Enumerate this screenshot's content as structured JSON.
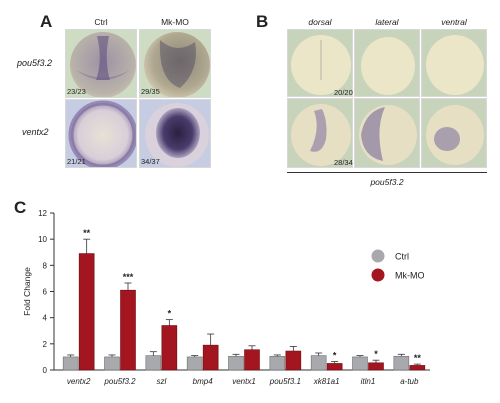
{
  "figure": {
    "panel_a": {
      "letter": "A",
      "columns": [
        "Ctrl",
        "Mk-MO"
      ],
      "rows": [
        {
          "label": "pou5f3.2",
          "counts": [
            "23/23",
            "29/35"
          ]
        },
        {
          "label": "ventx2",
          "counts": [
            "21/21",
            "34/37"
          ]
        }
      ]
    },
    "panel_b": {
      "letter": "B",
      "columns": [
        "dorsal",
        "lateral",
        "ventral"
      ],
      "counts": [
        "20/20",
        "28/34"
      ],
      "gene": "pou5f3.2"
    },
    "panel_c": {
      "letter": "C"
    }
  },
  "chart_data": {
    "type": "bar",
    "ylabel": "Fold Change",
    "ylim": [
      0,
      12
    ],
    "yticks": [
      0,
      2,
      4,
      6,
      8,
      10,
      12
    ],
    "categories": [
      "ventx2",
      "pou5f3.2",
      "szl",
      "bmp4",
      "ventx1",
      "pou5f3.1",
      "xk81a1",
      "itln1",
      "a-tub"
    ],
    "series": [
      {
        "name": "Ctrl",
        "color": "#a7a9ac",
        "values": [
          1.0,
          1.0,
          1.1,
          1.0,
          1.05,
          1.05,
          1.1,
          1.0,
          1.05
        ],
        "errors": [
          0.15,
          0.15,
          0.3,
          0.1,
          0.15,
          0.1,
          0.2,
          0.1,
          0.15
        ]
      },
      {
        "name": "Mk-MO",
        "color": "#a3161f",
        "values": [
          8.9,
          6.1,
          3.4,
          1.9,
          1.55,
          1.45,
          0.5,
          0.55,
          0.35
        ],
        "errors": [
          1.1,
          0.55,
          0.45,
          0.85,
          0.3,
          0.35,
          0.15,
          0.2,
          0.1
        ]
      }
    ],
    "significance": [
      "**",
      "***",
      "*",
      "",
      "",
      "",
      "*",
      "*",
      "**"
    ],
    "legend_position": "right"
  },
  "colors": {
    "ctrl": "#a7a9ac",
    "mk_mo": "#a3161f",
    "error_bar": "#333333",
    "tile_green_bg": "#cfdcc4",
    "tile_blue_bg": "#c6cce2",
    "embryo": "#e8e2c8",
    "stain": "#5a4a8c"
  }
}
